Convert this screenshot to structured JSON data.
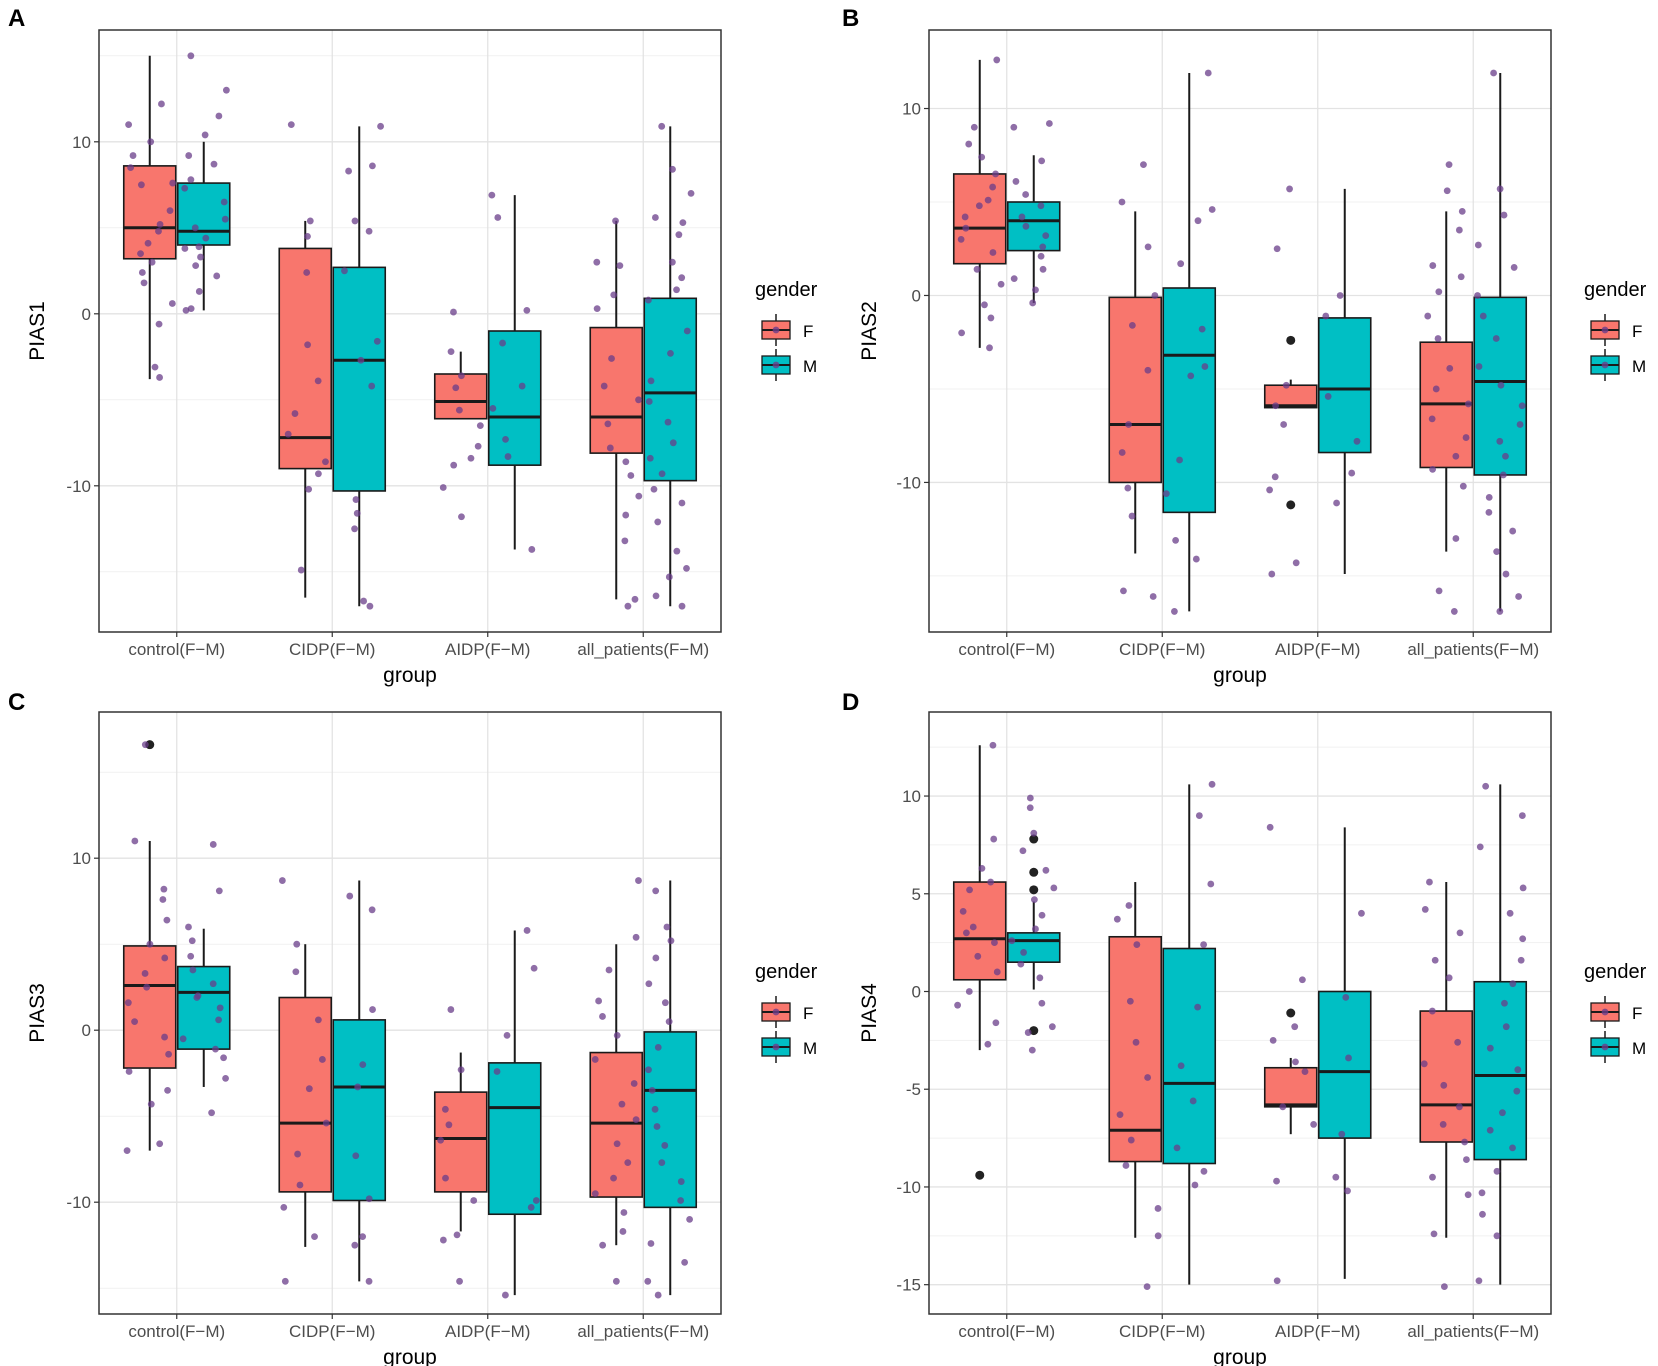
{
  "figure": {
    "xlabel": "group",
    "categories": [
      "control(F−M)",
      "CIDP(F−M)",
      "AIDP(F−M)",
      "all_patients(F−M)"
    ],
    "legend": {
      "title": "gender",
      "items": [
        {
          "label": "F",
          "color": "#F8766D"
        },
        {
          "label": "M",
          "color": "#00BFC4"
        }
      ]
    },
    "point_color": "#6A3D8A",
    "outlier_color": "#222222"
  },
  "chart_data": [
    {
      "panel": "A",
      "type": "box",
      "ylabel": "PIAS1",
      "xlabel": "group",
      "ylim": [
        -18.5,
        16.5
      ],
      "yticks": [
        -10,
        0,
        10
      ],
      "categories": [
        "control(F−M)",
        "CIDP(F−M)",
        "AIDP(F−M)",
        "all_patients(F−M)"
      ],
      "series": [
        {
          "name": "F",
          "boxes": [
            {
              "q1": 3.2,
              "median": 5.0,
              "q3": 8.6,
              "lo": -3.8,
              "hi": 15.0,
              "outliers": []
            },
            {
              "q1": -9.0,
              "median": -7.2,
              "q3": 3.8,
              "lo": -16.5,
              "hi": 5.4,
              "outliers": []
            },
            {
              "q1": -6.1,
              "median": -5.1,
              "q3": -3.5,
              "lo": -6.1,
              "hi": -2.2,
              "outliers": []
            },
            {
              "q1": -8.1,
              "median": -6.0,
              "q3": -0.8,
              "lo": -16.6,
              "hi": 5.4,
              "outliers": []
            }
          ]
        },
        {
          "name": "M",
          "boxes": [
            {
              "q1": 4.0,
              "median": 4.8,
              "q3": 7.6,
              "lo": 0.2,
              "hi": 10.0,
              "outliers": []
            },
            {
              "q1": -10.3,
              "median": -2.7,
              "q3": 2.7,
              "lo": -17.0,
              "hi": 10.9,
              "outliers": []
            },
            {
              "q1": -8.8,
              "median": -6.0,
              "q3": -1.0,
              "lo": -13.7,
              "hi": 6.9,
              "outliers": []
            },
            {
              "q1": -9.7,
              "median": -4.6,
              "q3": 0.9,
              "lo": -17.0,
              "hi": 10.9,
              "outliers": []
            }
          ]
        }
      ],
      "points": [
        [
          [
            12.2,
            10.0,
            8.5,
            7.5,
            6.0,
            5.2,
            4.8,
            4.1,
            3.5,
            3.0,
            2.4,
            1.8,
            0.6,
            -0.6,
            -3.1,
            -3.7,
            11.0,
            9.2,
            7.6
          ],
          [
            15.0,
            13.0,
            11.5,
            10.4,
            9.2,
            8.7,
            7.8,
            7.3,
            6.5,
            5.5,
            5.0,
            4.4,
            3.8,
            3.3,
            2.8,
            2.2,
            1.3,
            0.3,
            0.2,
            3.9
          ]
        ],
        [
          [
            11.0,
            5.4,
            2.4,
            -1.8,
            -3.9,
            -5.8,
            -7.0,
            -8.6,
            -9.3,
            -10.2,
            -14.9,
            4.5
          ],
          [
            10.9,
            8.6,
            8.3,
            5.4,
            2.5,
            -1.6,
            -2.7,
            -4.2,
            -10.8,
            -11.6,
            -12.5,
            -16.7,
            -17.0,
            4.8
          ]
        ],
        [
          [
            -2.2,
            -3.6,
            -4.3,
            -5.6,
            -6.5,
            -7.7,
            -8.4,
            -8.8,
            -10.1,
            -11.8,
            0.1
          ],
          [
            6.9,
            5.6,
            0.2,
            -1.7,
            -4.2,
            -5.5,
            -7.3,
            -8.3,
            -13.7
          ]
        ],
        [
          [
            5.4,
            3.0,
            0.3,
            -2.6,
            -4.2,
            -5.0,
            -6.4,
            -7.8,
            -8.6,
            -9.4,
            -10.6,
            -11.7,
            -13.2,
            -16.6,
            -17.0,
            1.1,
            2.8
          ],
          [
            10.9,
            8.4,
            7.0,
            5.6,
            5.3,
            4.6,
            3.0,
            2.1,
            1.4,
            0.8,
            -1.0,
            -2.3,
            -3.9,
            -5.1,
            -6.3,
            -7.5,
            -8.4,
            -9.3,
            -10.2,
            -11.0,
            -12.1,
            -13.8,
            -14.8,
            -15.3,
            -16.4,
            -17.0
          ]
        ]
      ]
    },
    {
      "panel": "B",
      "type": "box",
      "ylabel": "PIAS2",
      "xlabel": "group",
      "ylim": [
        -18.0,
        14.2
      ],
      "yticks": [
        -10,
        0,
        10
      ],
      "categories": [
        "control(F−M)",
        "CIDP(F−M)",
        "AIDP(F−M)",
        "all_patients(F−M)"
      ],
      "series": [
        {
          "name": "F",
          "boxes": [
            {
              "q1": 1.7,
              "median": 3.6,
              "q3": 6.5,
              "lo": -2.8,
              "hi": 12.6,
              "outliers": []
            },
            {
              "q1": -10.0,
              "median": -6.9,
              "q3": -0.1,
              "lo": -13.8,
              "hi": 4.5,
              "outliers": []
            },
            {
              "q1": -6.0,
              "median": -5.9,
              "q3": -4.8,
              "lo": -6.0,
              "hi": -4.5,
              "outliers": [
                -2.4,
                -11.2
              ]
            },
            {
              "q1": -9.2,
              "median": -5.8,
              "q3": -2.5,
              "lo": -13.7,
              "hi": 4.5,
              "outliers": []
            }
          ]
        },
        {
          "name": "M",
          "boxes": [
            {
              "q1": 2.4,
              "median": 4.0,
              "q3": 5.0,
              "lo": -0.4,
              "hi": 7.5,
              "outliers": []
            },
            {
              "q1": -11.6,
              "median": -3.2,
              "q3": 0.4,
              "lo": -16.9,
              "hi": 11.9,
              "outliers": []
            },
            {
              "q1": -8.4,
              "median": -5.0,
              "q3": -1.2,
              "lo": -14.9,
              "hi": 5.7,
              "outliers": []
            },
            {
              "q1": -9.6,
              "median": -4.6,
              "q3": -0.1,
              "lo": -16.9,
              "hi": 11.9,
              "outliers": []
            }
          ]
        }
      ],
      "points": [
        [
          [
            12.6,
            9.0,
            7.4,
            6.5,
            5.8,
            5.1,
            4.2,
            3.6,
            3.0,
            2.3,
            1.4,
            0.6,
            -0.5,
            -1.2,
            -2.0,
            -2.8,
            8.1,
            4.8
          ],
          [
            9.2,
            9.0,
            7.2,
            6.1,
            5.4,
            4.8,
            4.2,
            3.7,
            3.2,
            2.6,
            2.1,
            1.4,
            0.9,
            0.3,
            -0.4
          ]
        ],
        [
          [
            7.0,
            5.0,
            2.6,
            0.0,
            -1.6,
            -4.0,
            -6.9,
            -8.4,
            -10.3,
            -11.8,
            -16.1,
            -15.8
          ],
          [
            11.9,
            4.6,
            4.0,
            1.7,
            -1.8,
            -3.8,
            -4.3,
            -8.8,
            -10.6,
            -13.1,
            -14.1,
            -16.9
          ]
        ],
        [
          [
            5.7,
            2.5,
            -4.8,
            -5.9,
            -6.9,
            -9.7,
            -10.4,
            -14.3,
            -14.9
          ],
          [
            0.0,
            -1.1,
            -5.4,
            -7.8,
            -9.5,
            -11.1
          ]
        ],
        [
          [
            7.0,
            5.6,
            4.5,
            3.5,
            1.6,
            0.2,
            -1.1,
            -2.3,
            -3.9,
            -5.0,
            -5.8,
            -6.6,
            -7.6,
            -8.6,
            -9.3,
            -10.2,
            -13.0,
            -15.8,
            -16.9,
            1.0
          ],
          [
            11.9,
            5.7,
            4.3,
            2.7,
            1.5,
            0.0,
            -1.1,
            -2.3,
            -3.8,
            -4.8,
            -5.9,
            -6.9,
            -7.8,
            -8.6,
            -9.6,
            -10.8,
            -11.6,
            -12.6,
            -13.7,
            -14.9,
            -16.1,
            -16.9
          ]
        ]
      ]
    },
    {
      "panel": "C",
      "type": "box",
      "ylabel": "PIAS3",
      "xlabel": "group",
      "ylim": [
        -16.5,
        18.5
      ],
      "yticks": [
        -10,
        0,
        10
      ],
      "categories": [
        "control(F−M)",
        "CIDP(F−M)",
        "AIDP(F−M)",
        "all_patients(F−M)"
      ],
      "series": [
        {
          "name": "F",
          "boxes": [
            {
              "q1": -2.2,
              "median": 2.6,
              "q3": 4.9,
              "lo": -7.0,
              "hi": 11.0,
              "outliers": [
                16.6
              ]
            },
            {
              "q1": -9.4,
              "median": -5.4,
              "q3": 1.9,
              "lo": -12.6,
              "hi": 5.0,
              "outliers": []
            },
            {
              "q1": -9.4,
              "median": -6.3,
              "q3": -3.6,
              "lo": -11.7,
              "hi": -1.3,
              "outliers": []
            },
            {
              "q1": -9.7,
              "median": -5.4,
              "q3": -1.3,
              "lo": -12.5,
              "hi": 5.0,
              "outliers": []
            }
          ]
        },
        {
          "name": "M",
          "boxes": [
            {
              "q1": -1.1,
              "median": 2.2,
              "q3": 3.7,
              "lo": -3.3,
              "hi": 5.9,
              "outliers": []
            },
            {
              "q1": -9.9,
              "median": -3.3,
              "q3": 0.6,
              "lo": -14.6,
              "hi": 8.7,
              "outliers": []
            },
            {
              "q1": -10.7,
              "median": -4.5,
              "q3": -1.9,
              "lo": -15.4,
              "hi": 5.8,
              "outliers": []
            },
            {
              "q1": -10.3,
              "median": -3.5,
              "q3": -0.1,
              "lo": -15.4,
              "hi": 8.7,
              "outliers": []
            }
          ]
        }
      ],
      "points": [
        [
          [
            16.6,
            11.0,
            7.6,
            6.4,
            5.0,
            4.2,
            3.3,
            2.5,
            1.6,
            0.5,
            -0.4,
            -1.4,
            -2.4,
            -3.5,
            -4.3,
            -6.6,
            -7.0,
            8.2
          ],
          [
            10.8,
            8.1,
            6.0,
            5.2,
            4.3,
            3.5,
            2.7,
            2.0,
            1.3,
            0.6,
            -0.5,
            -1.6,
            -2.8,
            -4.8,
            -1.1,
            1.9
          ]
        ],
        [
          [
            8.7,
            5.0,
            3.4,
            0.6,
            -1.7,
            -3.4,
            -5.4,
            -7.2,
            -9.0,
            -10.3,
            -14.6,
            -12.0
          ],
          [
            7.8,
            7.0,
            1.2,
            -2.0,
            -3.3,
            -7.3,
            -9.8,
            -12.0,
            -12.5,
            -14.6
          ]
        ],
        [
          [
            1.2,
            -2.3,
            -4.6,
            -5.5,
            -6.4,
            -8.6,
            -9.9,
            -12.2,
            -14.6,
            -11.9
          ],
          [
            5.8,
            3.6,
            -0.3,
            -2.4,
            -9.9,
            -10.3,
            -15.4
          ]
        ],
        [
          [
            8.7,
            5.4,
            3.5,
            1.7,
            0.8,
            -0.3,
            -1.7,
            -3.1,
            -4.3,
            -5.2,
            -6.6,
            -7.7,
            -8.6,
            -9.5,
            -10.6,
            -11.7,
            -12.5,
            -14.6
          ],
          [
            8.1,
            6.0,
            5.2,
            4.2,
            2.7,
            1.6,
            0.5,
            -1.0,
            -2.3,
            -3.5,
            -4.6,
            -5.6,
            -6.7,
            -7.7,
            -8.8,
            -9.9,
            -11.0,
            -12.4,
            -13.5,
            -14.6,
            -15.4
          ]
        ]
      ]
    },
    {
      "panel": "D",
      "type": "box",
      "ylabel": "PIAS4",
      "xlabel": "group",
      "ylim": [
        -16.5,
        14.3
      ],
      "yticks": [
        -15,
        -10,
        -5,
        0,
        5,
        10
      ],
      "categories": [
        "control(F−M)",
        "CIDP(F−M)",
        "AIDP(F−M)",
        "all_patients(F−M)"
      ],
      "series": [
        {
          "name": "F",
          "boxes": [
            {
              "q1": 0.6,
              "median": 2.7,
              "q3": 5.6,
              "lo": -3.0,
              "hi": 12.6,
              "outliers": [
                -9.4
              ]
            },
            {
              "q1": -8.7,
              "median": -7.1,
              "q3": 2.8,
              "lo": -12.6,
              "hi": 5.6,
              "outliers": []
            },
            {
              "q1": -5.9,
              "median": -5.8,
              "q3": -3.9,
              "lo": -7.3,
              "hi": -3.4,
              "outliers": [
                -1.1
              ]
            },
            {
              "q1": -7.7,
              "median": -5.8,
              "q3": -1.0,
              "lo": -12.6,
              "hi": 5.6,
              "outliers": []
            }
          ]
        },
        {
          "name": "M",
          "boxes": [
            {
              "q1": 1.5,
              "median": 2.6,
              "q3": 3.0,
              "lo": 0.1,
              "hi": 4.6,
              "outliers": [
                7.8,
                6.1,
                5.2,
                -2.0
              ]
            },
            {
              "q1": -8.8,
              "median": -4.7,
              "q3": 2.2,
              "lo": -15.0,
              "hi": 10.6,
              "outliers": []
            },
            {
              "q1": -7.5,
              "median": -4.1,
              "q3": 0.0,
              "lo": -14.7,
              "hi": 8.4,
              "outliers": []
            },
            {
              "q1": -8.6,
              "median": -4.3,
              "q3": 0.5,
              "lo": -15.0,
              "hi": 10.6,
              "outliers": []
            }
          ]
        }
      ],
      "points": [
        [
          [
            12.6,
            7.8,
            6.3,
            5.2,
            4.1,
            3.3,
            2.5,
            1.8,
            1.0,
            0.0,
            -0.7,
            -1.6,
            -2.7,
            5.6,
            3.0
          ],
          [
            9.9,
            9.4,
            8.1,
            7.2,
            6.2,
            5.3,
            4.7,
            3.9,
            3.2,
            2.6,
            2.0,
            1.4,
            0.7,
            -0.6,
            -1.8,
            -2.1,
            -3.0
          ]
        ],
        [
          [
            4.4,
            2.4,
            -0.5,
            -2.6,
            -4.4,
            -6.3,
            -7.6,
            -8.9,
            -11.1,
            -12.5,
            -15.1,
            3.7
          ],
          [
            10.6,
            9.0,
            5.5,
            2.4,
            -0.8,
            -3.8,
            -5.6,
            -8.0,
            -9.2,
            -9.9
          ]
        ],
        [
          [
            8.4,
            0.6,
            -1.8,
            -3.6,
            -4.1,
            -5.9,
            -6.8,
            -9.7,
            -14.8,
            -2.5
          ],
          [
            4.0,
            -0.3,
            -3.4,
            -7.3,
            -9.5,
            -10.2
          ]
        ],
        [
          [
            5.6,
            4.2,
            3.0,
            1.6,
            0.7,
            -1.0,
            -2.6,
            -3.7,
            -4.8,
            -5.9,
            -6.8,
            -7.7,
            -8.6,
            -9.5,
            -10.4,
            -12.4,
            -15.1
          ],
          [
            10.5,
            9.0,
            7.4,
            5.3,
            4.0,
            2.7,
            1.6,
            0.4,
            -0.6,
            -1.8,
            -2.9,
            -4.0,
            -5.1,
            -6.2,
            -7.1,
            -8.0,
            -9.2,
            -10.3,
            -11.4,
            -12.5,
            -14.8
          ]
        ]
      ]
    }
  ]
}
